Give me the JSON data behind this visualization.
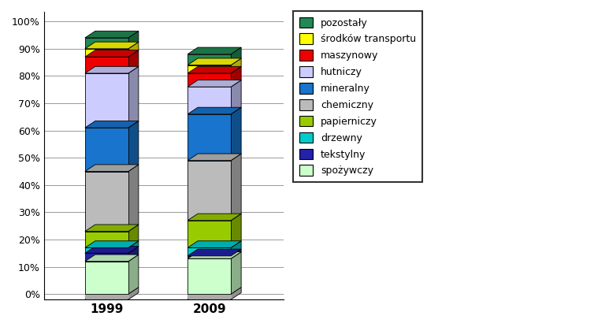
{
  "categories": [
    "1999",
    "2009"
  ],
  "segments": [
    {
      "label": "spożywczy",
      "color": "#ccffcc",
      "values": [
        12,
        13
      ]
    },
    {
      "label": "tekstylny",
      "color": "#2222aa",
      "values": [
        3,
        1
      ]
    },
    {
      "label": "drzewny",
      "color": "#00cccc",
      "values": [
        2,
        3
      ]
    },
    {
      "label": "papierniczy",
      "color": "#99cc00",
      "values": [
        6,
        10
      ]
    },
    {
      "label": "chemiczny",
      "color": "#bbbbbb",
      "values": [
        22,
        22
      ]
    },
    {
      "label": "mineralny",
      "color": "#1874cc",
      "values": [
        16,
        17
      ]
    },
    {
      "label": "hutniczy",
      "color": "#ccccff",
      "values": [
        20,
        10
      ]
    },
    {
      "label": "maszynowy",
      "color": "#ee0000",
      "values": [
        6,
        5
      ]
    },
    {
      "label": "środków transportu",
      "color": "#ffff00",
      "values": [
        3,
        3
      ]
    },
    {
      "label": "pozostały",
      "color": "#228855",
      "values": [
        4,
        4
      ]
    }
  ],
  "bar_width": 0.38,
  "depth_x": 0.09,
  "depth_y": 2.5,
  "ylim": [
    0,
    100
  ],
  "yticks": [
    0,
    10,
    20,
    30,
    40,
    50,
    60,
    70,
    80,
    90,
    100
  ],
  "ytick_labels": [
    "0%",
    "10%",
    "20%",
    "30%",
    "40%",
    "50%",
    "60%",
    "70%",
    "80%",
    "90%",
    "100%"
  ],
  "bg_color": "#ffffff",
  "grid_color": "#999999",
  "legend_order": [
    "pozostały",
    "środków transportu",
    "maszynowy",
    "hutniczy",
    "mineralny",
    "chemiczny",
    "papierniczy",
    "drzewny",
    "tekstylny",
    "spożywczy"
  ],
  "x_positions": [
    0.45,
    1.35
  ],
  "xlim": [
    -0.1,
    2.0
  ]
}
